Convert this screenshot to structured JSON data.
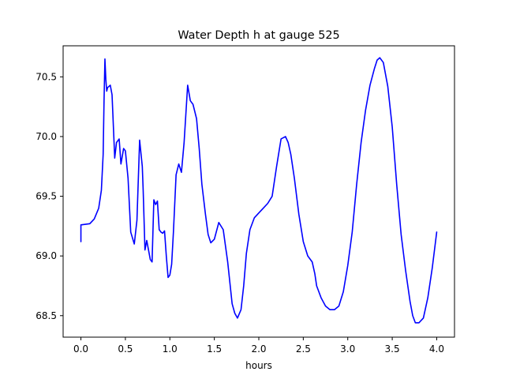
{
  "chart_data": {
    "type": "line",
    "title": "Water Depth h at gauge 525",
    "xlabel": "hours",
    "ylabel": "",
    "xlim": [
      -0.2,
      4.2
    ],
    "ylim": [
      68.32,
      70.76
    ],
    "xticks": [
      0.0,
      0.5,
      1.0,
      1.5,
      2.0,
      2.5,
      3.0,
      3.5,
      4.0
    ],
    "xtick_labels": [
      "0.0",
      "0.5",
      "1.0",
      "1.5",
      "2.0",
      "2.5",
      "3.0",
      "3.5",
      "4.0"
    ],
    "yticks": [
      68.5,
      69.0,
      69.5,
      70.0,
      70.5
    ],
    "ytick_labels": [
      "68.5",
      "69.0",
      "69.5",
      "70.0",
      "70.5"
    ],
    "grid": false,
    "color": "#0000ff",
    "series": [
      {
        "x": [
          0.0,
          0.0,
          0.1,
          0.15,
          0.2,
          0.23,
          0.25,
          0.26,
          0.27,
          0.28,
          0.29,
          0.3,
          0.33,
          0.35,
          0.38,
          0.4,
          0.43,
          0.45,
          0.48,
          0.5,
          0.53,
          0.56,
          0.6,
          0.63,
          0.66,
          0.69,
          0.7,
          0.72,
          0.74,
          0.78,
          0.8,
          0.82,
          0.84,
          0.86,
          0.88,
          0.9,
          0.92,
          0.94,
          0.96,
          0.98,
          1.0,
          1.02,
          1.04,
          1.07,
          1.1,
          1.13,
          1.16,
          1.2,
          1.23,
          1.26,
          1.3,
          1.33,
          1.36,
          1.4,
          1.43,
          1.46,
          1.5,
          1.55,
          1.6,
          1.65,
          1.7,
          1.73,
          1.76,
          1.8,
          1.83,
          1.86,
          1.9,
          1.95,
          2.0,
          2.05,
          2.1,
          2.15,
          2.2,
          2.25,
          2.3,
          2.33,
          2.36,
          2.4,
          2.45,
          2.5,
          2.55,
          2.6,
          2.63,
          2.65,
          2.7,
          2.75,
          2.8,
          2.85,
          2.9,
          2.95,
          3.0,
          3.05,
          3.1,
          3.15,
          3.2,
          3.25,
          3.3,
          3.33,
          3.36,
          3.4,
          3.45,
          3.5,
          3.55,
          3.6,
          3.65,
          3.7,
          3.73,
          3.76,
          3.8,
          3.85,
          3.9,
          3.95,
          4.0
        ],
        "y": [
          69.12,
          69.26,
          69.27,
          69.31,
          69.4,
          69.55,
          69.85,
          70.3,
          70.65,
          70.48,
          70.38,
          70.41,
          70.43,
          70.35,
          69.82,
          69.95,
          69.98,
          69.77,
          69.9,
          69.88,
          69.65,
          69.2,
          69.1,
          69.3,
          69.97,
          69.75,
          69.55,
          69.05,
          69.13,
          68.97,
          68.95,
          69.47,
          69.43,
          69.46,
          69.22,
          69.2,
          69.19,
          69.21,
          69.0,
          68.82,
          68.84,
          68.93,
          69.2,
          69.68,
          69.77,
          69.7,
          69.95,
          70.43,
          70.3,
          70.27,
          70.15,
          69.9,
          69.6,
          69.35,
          69.18,
          69.11,
          69.14,
          69.28,
          69.22,
          68.95,
          68.6,
          68.52,
          68.48,
          68.55,
          68.75,
          69.02,
          69.22,
          69.32,
          69.36,
          69.4,
          69.44,
          69.5,
          69.75,
          69.98,
          70.0,
          69.95,
          69.85,
          69.65,
          69.35,
          69.12,
          69.0,
          68.95,
          68.85,
          68.75,
          68.65,
          68.58,
          68.55,
          68.55,
          68.58,
          68.7,
          68.92,
          69.2,
          69.6,
          69.95,
          70.22,
          70.43,
          70.57,
          70.64,
          70.66,
          70.62,
          70.42,
          70.08,
          69.6,
          69.18,
          68.88,
          68.62,
          68.5,
          68.44,
          68.44,
          68.48,
          68.65,
          68.9,
          69.2
        ]
      }
    ]
  }
}
